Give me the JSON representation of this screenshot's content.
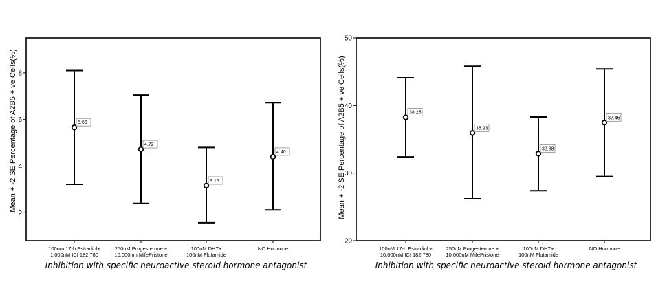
{
  "chart_data": [
    {
      "type": "errorbar",
      "title": "",
      "xlabel": "Inhibition with specific neuroactive steroid hormone antagonist",
      "ylabel": "Mean + -2 SE  Percentage  of  A2B5 + ve Cells(%)",
      "ylim": [
        0.8,
        9.5
      ],
      "yticks": [
        2,
        4,
        6,
        8
      ],
      "categories": [
        [
          "100nm 17-b  Estradiol+",
          "1.000nM ICI 182.780"
        ],
        [
          "250nM Progesterone +",
          "10.000nm  MifePristone"
        ],
        [
          "100nM DHT+",
          "100nM Flutamide"
        ],
        [
          "NO Hormone"
        ]
      ],
      "means": [
        5.66,
        4.72,
        3.16,
        4.4
      ],
      "lower": [
        3.22,
        2.4,
        1.57,
        2.12
      ],
      "upper": [
        8.1,
        7.05,
        4.8,
        6.72
      ],
      "data_labels": [
        "5.66",
        "4.72",
        "3.16",
        "4.40"
      ],
      "grid": false
    },
    {
      "type": "errorbar",
      "title": "",
      "xlabel": "Inhibition with specific neuroactive steroid hormone antagonist",
      "ylabel": "Mean + -2 SE  Percentage  of  A2B5 + ve Cells(%)",
      "ylim": [
        20,
        50
      ],
      "yticks": [
        20,
        30,
        40,
        50
      ],
      "categories": [
        [
          "100nM 17-b Estradiol +",
          "10.000nM ICI 182.780"
        ],
        [
          "250nM  Progesterone +",
          "10.000nM  MifePristone"
        ],
        [
          "100nM DHT+",
          "100nM Flutamide"
        ],
        [
          "NO  Hormone"
        ]
      ],
      "means": [
        38.25,
        35.93,
        32.88,
        37.46
      ],
      "lower": [
        32.4,
        26.2,
        27.4,
        29.5
      ],
      "upper": [
        44.1,
        45.8,
        38.3,
        45.4
      ],
      "data_labels": [
        "38.25",
        "35.93",
        "32.88",
        "37.46"
      ],
      "grid": false
    }
  ]
}
